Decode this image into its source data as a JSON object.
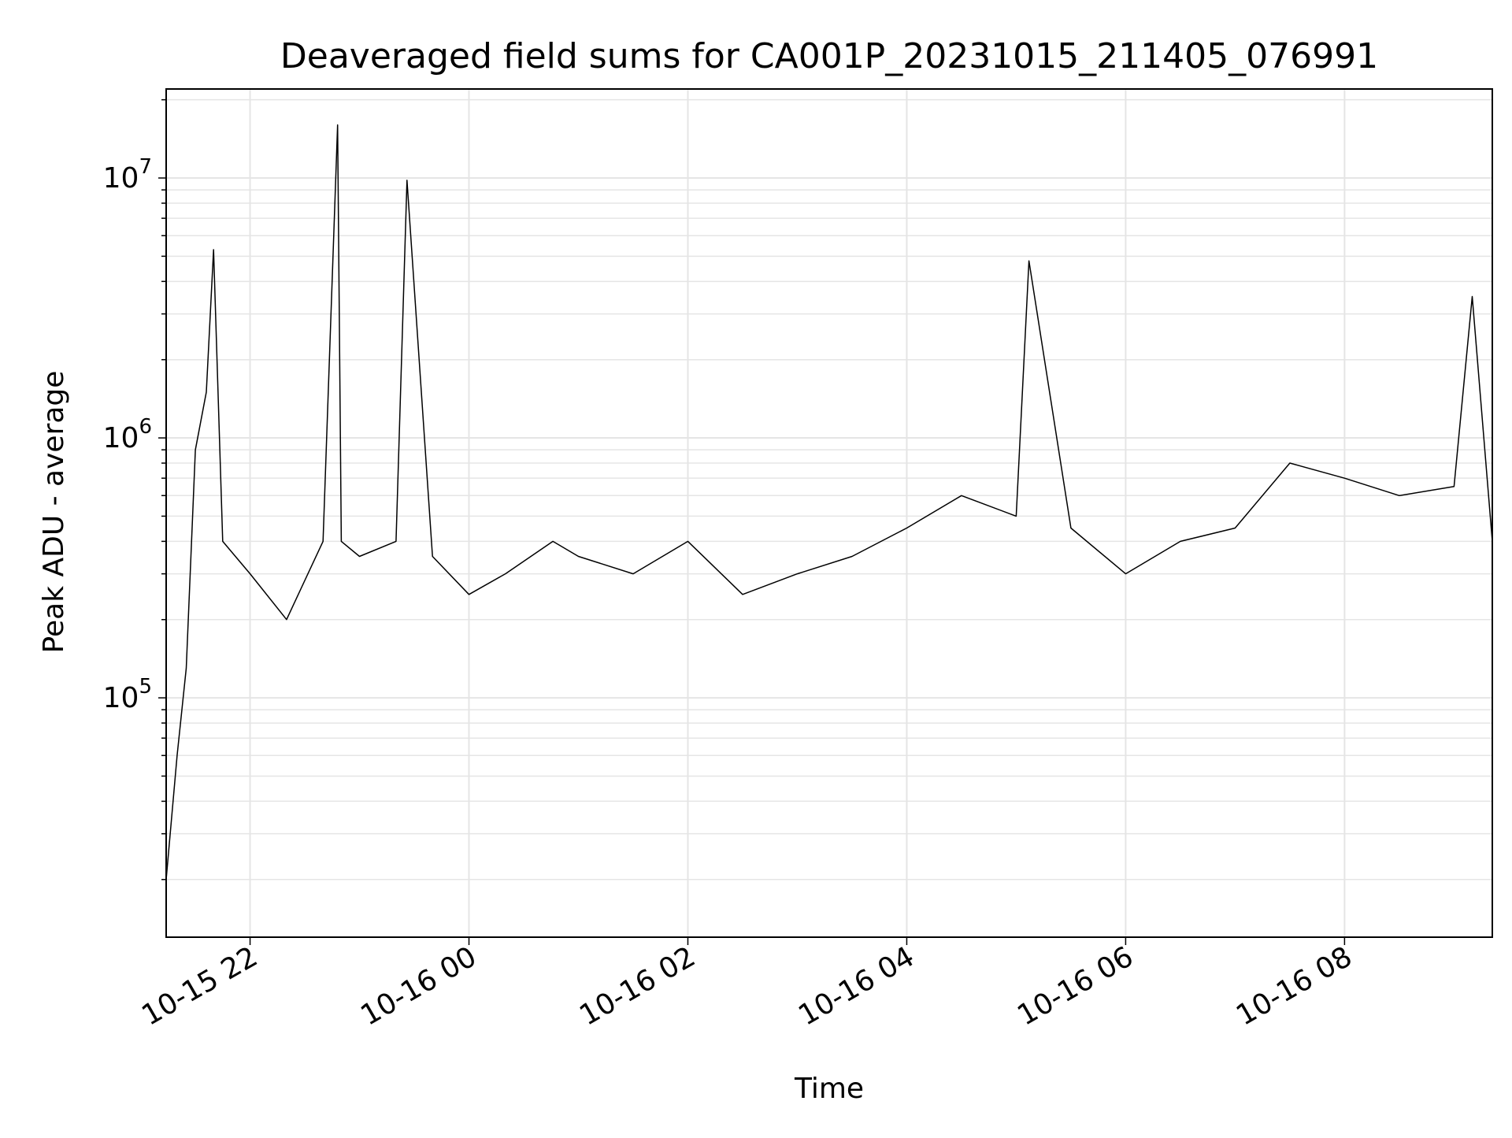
{
  "chart_data": {
    "type": "line",
    "title": "Deaveraged field sums for CA001P_20231015_211405_076991",
    "xlabel": "Time",
    "ylabel": "Peak ADU - average",
    "yscale": "log",
    "grid": true,
    "legend": "none",
    "line_color": "#000000",
    "grid_color": "#e5e5e5",
    "xlim": [
      "2023-10-15 21:14",
      "2023-10-16 09:21"
    ],
    "ylim": [
      12000,
      22000000
    ],
    "x_ticks": [
      {
        "value": "2023-10-15 22:00",
        "label": "10-15 22"
      },
      {
        "value": "2023-10-16 00:00",
        "label": "10-16 00"
      },
      {
        "value": "2023-10-16 02:00",
        "label": "10-16 02"
      },
      {
        "value": "2023-10-16 04:00",
        "label": "10-16 04"
      },
      {
        "value": "2023-10-16 06:00",
        "label": "10-16 06"
      },
      {
        "value": "2023-10-16 08:00",
        "label": "10-16 08"
      }
    ],
    "y_ticks": [
      {
        "value": 100000,
        "base": "10",
        "exp": "5"
      },
      {
        "value": 1000000,
        "base": "10",
        "exp": "6"
      },
      {
        "value": 10000000,
        "base": "10",
        "exp": "7"
      }
    ],
    "series": [
      {
        "x": [
          "2023-10-15 21:14",
          "2023-10-15 21:20",
          "2023-10-15 21:25",
          "2023-10-15 21:30",
          "2023-10-15 21:36",
          "2023-10-15 21:40",
          "2023-10-15 21:45",
          "2023-10-15 22:00",
          "2023-10-15 22:20",
          "2023-10-15 22:40",
          "2023-10-15 22:48",
          "2023-10-15 22:50",
          "2023-10-15 23:00",
          "2023-10-15 23:20",
          "2023-10-15 23:26",
          "2023-10-15 23:40",
          "2023-10-16 00:00",
          "2023-10-16 00:20",
          "2023-10-16 00:46",
          "2023-10-16 01:00",
          "2023-10-16 01:30",
          "2023-10-16 02:00",
          "2023-10-16 02:30",
          "2023-10-16 03:00",
          "2023-10-16 03:30",
          "2023-10-16 04:00",
          "2023-10-16 04:30",
          "2023-10-16 05:00",
          "2023-10-16 05:07",
          "2023-10-16 05:30",
          "2023-10-16 06:00",
          "2023-10-16 06:30",
          "2023-10-16 07:00",
          "2023-10-16 07:30",
          "2023-10-16 08:00",
          "2023-10-16 08:30",
          "2023-10-16 09:00",
          "2023-10-16 09:10",
          "2023-10-16 09:21"
        ],
        "y": [
          20000,
          60000,
          130000,
          900000,
          1500000,
          5300000,
          400000,
          300000,
          200000,
          400000,
          16000000,
          400000,
          350000,
          400000,
          9800000,
          350000,
          250000,
          300000,
          400000,
          350000,
          300000,
          400000,
          250000,
          300000,
          350000,
          450000,
          600000,
          500000,
          4800000,
          450000,
          300000,
          400000,
          450000,
          800000,
          700000,
          600000,
          650000,
          3500000,
          400000
        ]
      }
    ]
  }
}
